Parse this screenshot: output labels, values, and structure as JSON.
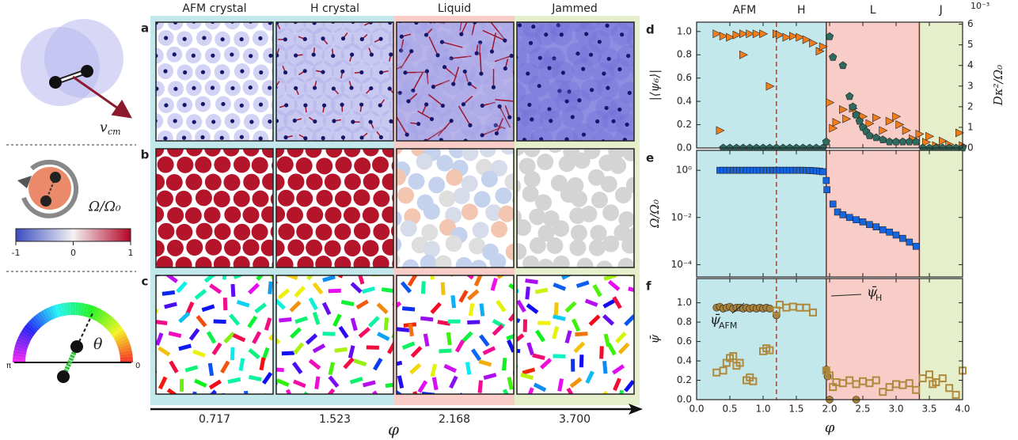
{
  "columns": [
    "AFM crystal",
    "H crystal",
    "Liquid",
    "Jammed"
  ],
  "panel_letters": [
    "a",
    "b",
    "c"
  ],
  "phi_axis": {
    "label": "φ",
    "values": [
      "0.717",
      "1.523",
      "2.168",
      "3.700"
    ]
  },
  "legend_panel": {
    "velocity": "v",
    "velocity_sub": "cm",
    "colorbar": {
      "label": "Ω/Ω₀",
      "ticks": [
        -1,
        0,
        1
      ],
      "colors": [
        "#3b4cc0",
        "#f2f2f2",
        "#b40426"
      ]
    },
    "angle": "θ",
    "angle_left": "π",
    "angle_right": "0"
  },
  "chart_data": [
    {
      "type": "scatter",
      "panel": "d",
      "ylabel": "|⟨ψ₆⟩|",
      "y2label": "Dκ²/Ω₀",
      "y2_exponent": "10⁻³",
      "regions": [
        {
          "label": "AFM",
          "start": 0,
          "end": 1.2,
          "color": "#c3e8ec"
        },
        {
          "label": "H",
          "start": 1.2,
          "end": 1.95,
          "color": "#c3e8ec"
        },
        {
          "label": "L",
          "start": 1.95,
          "end": 3.35,
          "color": "#f8cdc8"
        },
        {
          "label": "J",
          "start": 3.35,
          "end": 4,
          "color": "#e6efcb"
        }
      ],
      "xlim": [
        0,
        4
      ],
      "xticks": [
        0,
        0.5,
        1,
        1.5,
        2,
        2.5,
        3,
        3.5,
        4
      ],
      "ylim": [
        0,
        1.08
      ],
      "yticks": [
        {
          "value": 0,
          "label": "0.0"
        },
        {
          "value": 0.2,
          "label": "0.2"
        },
        {
          "value": 0.4,
          "label": "0.4"
        },
        {
          "value": 0.6,
          "label": "0.6"
        },
        {
          "value": 0.8,
          "label": "0.8"
        },
        {
          "value": 1,
          "label": "1.0"
        }
      ],
      "y2lim": [
        0,
        6.1
      ],
      "y2ticks": [
        0,
        1,
        2,
        3,
        4,
        5,
        6
      ],
      "series": [
        {
          "marker": "triangle",
          "color": "#f07d1a",
          "filled": true,
          "x": [
            0.3,
            0.35,
            0.4,
            0.5,
            0.6,
            0.7,
            0.7,
            0.8,
            0.9,
            1.0,
            1.1,
            1.2,
            1.25,
            1.35,
            1.45,
            1.55,
            1.65,
            1.75,
            1.85,
            1.9,
            2.0,
            2.05,
            2.1,
            2.2,
            2.25,
            2.35,
            2.4,
            2.5,
            2.6,
            2.7,
            2.8,
            2.9,
            3.0,
            3.05,
            3.15,
            3.25,
            3.35,
            3.45,
            3.5,
            3.6,
            3.7,
            3.8,
            3.95,
            4.0
          ],
          "values": [
            0.98,
            0.15,
            0.96,
            0.95,
            0.97,
            0.98,
            0.8,
            0.98,
            0.98,
            0.98,
            0.53,
            0.98,
            0.97,
            0.95,
            0.96,
            0.95,
            0.93,
            0.9,
            0.83,
            0.87,
            0.39,
            0.17,
            0.22,
            0.33,
            0.25,
            0.34,
            0.3,
            0.27,
            0.21,
            0.26,
            0.15,
            0.23,
            0.27,
            0.2,
            0.15,
            0.08,
            0.12,
            0.05,
            0.1,
            0.02,
            0.06,
            0.03,
            0.13,
            0.02
          ]
        },
        {
          "marker": "pentagon",
          "color": "#2e6b5e",
          "filled": true,
          "axis": "y2",
          "x": [
            0.4,
            0.5,
            0.6,
            0.7,
            0.8,
            0.9,
            1.0,
            1.1,
            1.2,
            1.3,
            1.4,
            1.5,
            1.6,
            1.7,
            1.8,
            1.9,
            1.95,
            2.0,
            2.05,
            2.2,
            2.3,
            2.35,
            2.4,
            2.45,
            2.5,
            2.55,
            2.6,
            2.7,
            2.8,
            2.9,
            3.0,
            3.1,
            3.2,
            3.3,
            3.4,
            3.5,
            3.6,
            3.7,
            3.8,
            3.9,
            4.0
          ],
          "values": [
            0,
            0,
            0,
            0,
            0,
            0,
            0,
            0,
            0,
            0,
            0,
            0,
            0,
            0,
            0,
            0,
            0.3,
            5.4,
            4.4,
            4.0,
            2.5,
            2.0,
            1.6,
            1.3,
            1.0,
            0.8,
            0.6,
            0.5,
            0.4,
            0.3,
            0.3,
            0.3,
            0.3,
            0.3,
            0,
            0,
            0,
            0,
            0,
            0,
            0
          ]
        }
      ]
    },
    {
      "type": "scatter",
      "panel": "e",
      "ylabel": "Ω/Ω₀",
      "log_scale": true,
      "xlim": [
        0,
        4
      ],
      "xticks": [
        0,
        0.5,
        1,
        1.5,
        2,
        2.5,
        3,
        3.5,
        4
      ],
      "ylim": [
        3e-05,
        7
      ],
      "yticks": [
        {
          "value": 1,
          "label": "10⁰"
        },
        {
          "value": 0.01,
          "label": "10⁻²"
        },
        {
          "value": 0.0001,
          "label": "10⁻⁴"
        }
      ],
      "series": [
        {
          "marker": "square",
          "color": "#1565e0",
          "filled": true,
          "x": [
            0.35,
            0.4,
            0.45,
            0.5,
            0.55,
            0.6,
            0.65,
            0.7,
            0.75,
            0.8,
            0.85,
            0.9,
            0.95,
            1.0,
            1.05,
            1.1,
            1.15,
            1.2,
            1.25,
            1.3,
            1.35,
            1.4,
            1.45,
            1.5,
            1.55,
            1.6,
            1.65,
            1.7,
            1.75,
            1.8,
            1.85,
            1.9,
            1.95,
            1.96,
            2.05,
            2.12,
            2.2,
            2.3,
            2.4,
            2.5,
            2.6,
            2.7,
            2.8,
            2.9,
            3.0,
            3.1,
            3.2,
            3.3
          ],
          "values": [
            1,
            1,
            1,
            1,
            1,
            1,
            1,
            1,
            1,
            1,
            1,
            1,
            1,
            1,
            1,
            1,
            1,
            1,
            1,
            1,
            1,
            1,
            1,
            1,
            1,
            1,
            0.99,
            0.98,
            0.96,
            0.94,
            0.91,
            0.87,
            0.37,
            0.15,
            0.037,
            0.017,
            0.013,
            0.01,
            0.008,
            0.0065,
            0.005,
            0.004,
            0.003,
            0.0024,
            0.0018,
            0.0013,
            0.0009,
            0.0006
          ]
        }
      ]
    },
    {
      "type": "scatter",
      "panel": "f",
      "ylabel": "ψ̄",
      "xlabel": "φ",
      "xlim": [
        0,
        4
      ],
      "xticks": [
        {
          "value": 0,
          "label": "0.0"
        },
        {
          "value": 0.5,
          "label": "0.5"
        },
        {
          "value": 1,
          "label": "1.0"
        },
        {
          "value": 1.5,
          "label": "1.5"
        },
        {
          "value": 2,
          "label": "2.0"
        },
        {
          "value": 2.5,
          "label": "2.5"
        },
        {
          "value": 3,
          "label": "3.0"
        },
        {
          "value": 3.5,
          "label": "3.5"
        },
        {
          "value": 4,
          "label": "4.0"
        }
      ],
      "ylim": [
        0,
        1.25
      ],
      "yticks": [
        {
          "value": 0,
          "label": "0.0"
        },
        {
          "value": 0.2,
          "label": "0.2"
        },
        {
          "value": 0.4,
          "label": "0.4"
        },
        {
          "value": 0.6,
          "label": "0.6"
        },
        {
          "value": 0.8,
          "label": "0.8"
        },
        {
          "value": 1,
          "label": "1.0"
        }
      ],
      "annotations": [
        {
          "text": "ψ̄",
          "subscript": "AFM"
        },
        {
          "text": "ψ̄",
          "subscript": "H"
        }
      ],
      "series": [
        {
          "marker": "circle",
          "color": "#a8813a",
          "filled": true,
          "x": [
            0.3,
            0.35,
            0.4,
            0.45,
            0.5,
            0.55,
            0.6,
            0.65,
            0.7,
            0.75,
            0.8,
            0.85,
            0.9,
            0.95,
            1.0,
            1.05,
            1.1,
            1.2,
            1.95,
            1.97,
            2.0,
            2.4
          ],
          "values": [
            0.95,
            0.96,
            0.94,
            0.95,
            0.96,
            0.94,
            0.95,
            0.95,
            0.94,
            0.95,
            0.94,
            0.95,
            0.94,
            0.95,
            0.94,
            0.95,
            0.94,
            0.87,
            0.31,
            0.24,
            0,
            0
          ]
        },
        {
          "marker": "square",
          "color": "#b08a3c",
          "filled": false,
          "x": [
            0.3,
            0.4,
            0.45,
            0.5,
            0.55,
            0.6,
            0.65,
            0.75,
            0.8,
            0.85,
            1.0,
            1.05,
            1.1,
            1.2,
            1.25,
            1.35,
            1.45,
            1.55,
            1.65,
            1.75,
            1.95,
            2.0,
            2.05,
            2.1,
            2.2,
            2.3,
            2.4,
            2.5,
            2.6,
            2.7,
            2.8,
            2.9,
            3.0,
            3.1,
            3.2,
            3.3,
            3.4,
            3.5,
            3.55,
            3.6,
            3.7,
            3.8,
            3.9,
            4.0
          ],
          "values": [
            0.28,
            0.3,
            0.38,
            0.43,
            0.45,
            0.35,
            0.38,
            0.2,
            0.23,
            0.19,
            0.5,
            0.53,
            0.51,
            0.92,
            0.98,
            0.95,
            0.96,
            0.95,
            0.95,
            0.9,
            0.3,
            0.25,
            0.13,
            0.18,
            0.17,
            0.2,
            0.16,
            0.19,
            0.17,
            0.2,
            0.08,
            0.13,
            0.16,
            0.15,
            0.17,
            0.1,
            0.22,
            0.26,
            0.16,
            0.18,
            0.22,
            0.12,
            0.05,
            0.3
          ]
        }
      ]
    }
  ]
}
